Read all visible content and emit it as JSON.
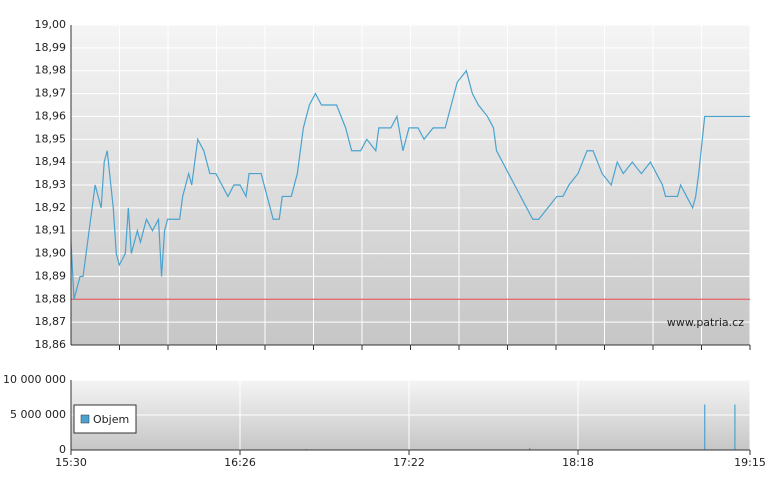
{
  "chart_data": [
    {
      "type": "line",
      "x": [
        "15:30",
        "15:31",
        "15:32",
        "15:33",
        "15:34",
        "15:36",
        "15:37",
        "15:38",
        "15:40",
        "15:41",
        "15:42",
        "15:44",
        "15:45",
        "15:46",
        "15:48",
        "15:49",
        "15:50",
        "15:52",
        "15:53",
        "15:55",
        "15:57",
        "15:59",
        "16:00",
        "16:01",
        "16:02",
        "16:04",
        "16:06",
        "16:07",
        "16:09",
        "16:10",
        "16:11",
        "16:12",
        "16:14",
        "16:16",
        "16:18",
        "16:20",
        "16:22",
        "16:24",
        "16:26",
        "16:28",
        "16:29",
        "16:31",
        "16:33",
        "16:35",
        "16:37",
        "16:39",
        "16:40",
        "16:43",
        "16:45",
        "16:46",
        "16:47",
        "16:49",
        "16:51",
        "16:53",
        "16:55",
        "16:58",
        "17:01",
        "17:03",
        "17:06",
        "17:08",
        "17:11",
        "17:12",
        "17:16",
        "17:18",
        "17:20",
        "17:22",
        "17:25",
        "17:27",
        "17:30",
        "17:32",
        "17:34",
        "17:36",
        "17:38",
        "17:41",
        "17:43",
        "17:45",
        "17:48",
        "17:50",
        "17:51",
        "17:53",
        "17:55",
        "17:57",
        "17:59",
        "18:01",
        "18:03",
        "18:05",
        "18:08",
        "18:11",
        "18:13",
        "18:15",
        "18:18",
        "18:21",
        "18:23",
        "18:26",
        "18:29",
        "18:31",
        "18:33",
        "18:36",
        "18:39",
        "18:42",
        "18:44",
        "18:46",
        "18:47",
        "18:51",
        "18:52",
        "18:54",
        "18:56",
        "18:57",
        "18:58",
        "19:00",
        "19:15"
      ],
      "values": [
        18.905,
        18.88,
        18.885,
        18.89,
        18.89,
        18.91,
        18.92,
        18.93,
        18.92,
        18.94,
        18.945,
        18.92,
        18.9,
        18.895,
        18.9,
        18.92,
        18.9,
        18.91,
        18.905,
        18.915,
        18.91,
        18.915,
        18.89,
        18.91,
        18.915,
        18.915,
        18.915,
        18.925,
        18.935,
        18.93,
        18.94,
        18.95,
        18.945,
        18.935,
        18.935,
        18.93,
        18.925,
        18.93,
        18.93,
        18.925,
        18.935,
        18.935,
        18.935,
        18.925,
        18.915,
        18.915,
        18.925,
        18.925,
        18.935,
        18.945,
        18.955,
        18.965,
        18.97,
        18.965,
        18.965,
        18.965,
        18.955,
        18.945,
        18.945,
        18.95,
        18.945,
        18.955,
        18.955,
        18.96,
        18.945,
        18.955,
        18.955,
        18.95,
        18.955,
        18.955,
        18.955,
        18.965,
        18.975,
        18.98,
        18.97,
        18.965,
        18.96,
        18.955,
        18.945,
        18.94,
        18.935,
        18.93,
        18.925,
        18.92,
        18.915,
        18.915,
        18.92,
        18.925,
        18.925,
        18.93,
        18.935,
        18.945,
        18.945,
        18.935,
        18.93,
        18.94,
        18.935,
        18.94,
        18.935,
        18.94,
        18.935,
        18.93,
        18.925,
        18.925,
        18.93,
        18.925,
        18.92,
        18.925,
        18.935,
        18.96,
        18.96
      ],
      "color": "#4aa3cf",
      "xlim": [
        "15:30",
        "19:15"
      ],
      "ylim": [
        18.86,
        19.0
      ],
      "yticks": [
        {
          "value": 18.86,
          "label": "18,86"
        },
        {
          "value": 18.87,
          "label": "18,87"
        },
        {
          "value": 18.88,
          "label": "18,88"
        },
        {
          "value": 18.89,
          "label": "18,89"
        },
        {
          "value": 18.9,
          "label": "18,90"
        },
        {
          "value": 18.91,
          "label": "18,91"
        },
        {
          "value": 18.92,
          "label": "18,92"
        },
        {
          "value": 18.93,
          "label": "18,93"
        },
        {
          "value": 18.94,
          "label": "18,94"
        },
        {
          "value": 18.95,
          "label": "18,95"
        },
        {
          "value": 18.96,
          "label": "18,96"
        },
        {
          "value": 18.97,
          "label": "18,97"
        },
        {
          "value": 18.98,
          "label": "18,98"
        },
        {
          "value": 18.99,
          "label": "18,99"
        },
        {
          "value": 19.0,
          "label": "19,00"
        }
      ],
      "reference_line": {
        "value": 18.88,
        "color": "#e06060"
      },
      "annotation": "www.patria.cz",
      "grid": true
    },
    {
      "type": "bar",
      "x": [
        "16:48",
        "18:02",
        "19:00",
        "19:10"
      ],
      "series": [
        {
          "name": "Objem",
          "color": "#4aa3cf",
          "values": [
            150000,
            300000,
            6500000,
            6500000
          ]
        }
      ],
      "xlim": [
        "15:30",
        "19:15"
      ],
      "xticks": [
        "15:30",
        "16:26",
        "17:22",
        "18:18",
        "19:15"
      ],
      "ylim": [
        0,
        10000000
      ],
      "yticks": [
        0,
        {
          "value": 5000000,
          "label": "5 000 000"
        },
        {
          "value": 10000000,
          "label": "10 000 000"
        }
      ],
      "legend": "bottom-left",
      "grid": true
    }
  ]
}
